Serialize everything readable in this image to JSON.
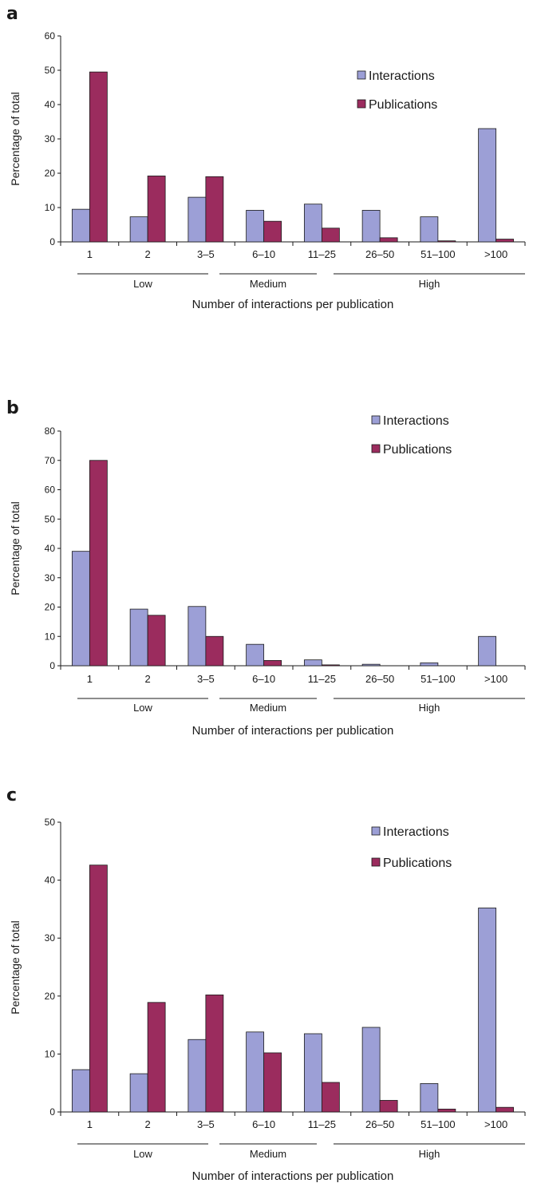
{
  "chart_data": [
    {
      "panel": "a",
      "type": "bar",
      "categories": [
        "1",
        "2",
        "3–5",
        "6–10",
        "11–25",
        "26–50",
        "51–100",
        ">100"
      ],
      "series": [
        {
          "name": "Interactions",
          "values": [
            9.5,
            7.3,
            13,
            9.2,
            11,
            9.2,
            7.3,
            33
          ]
        },
        {
          "name": "Publications",
          "values": [
            49.5,
            19.2,
            19,
            6,
            4,
            1.2,
            0.3,
            0.8
          ]
        }
      ],
      "ylabel": "Percentage of total",
      "xlabel": "Number of interactions per publication",
      "ylim": [
        0,
        60
      ],
      "yticks": [
        "0",
        "10",
        "20",
        "30",
        "40",
        "50",
        "60"
      ],
      "groups": [
        {
          "label": "Low",
          "from": 0,
          "to": 2
        },
        {
          "label": "Medium",
          "from": 3,
          "to": 4
        },
        {
          "label": "High",
          "from": 5,
          "to": 7
        }
      ],
      "colors": {
        "Interactions": "#9c9fd6",
        "Publications": "#9b2c5e"
      },
      "legend": "top-right",
      "grid": false
    },
    {
      "panel": "b",
      "type": "bar",
      "categories": [
        "1",
        "2",
        "3–5",
        "6–10",
        "11–25",
        "26–50",
        "51–100",
        ">100"
      ],
      "series": [
        {
          "name": "Interactions",
          "values": [
            39,
            19.3,
            20.2,
            7.3,
            2,
            0.5,
            1,
            10
          ]
        },
        {
          "name": "Publications",
          "values": [
            70,
            17.2,
            10,
            1.8,
            0.3,
            0,
            0,
            0
          ]
        }
      ],
      "ylabel": "Percentage of total",
      "xlabel": "Number of interactions per publication",
      "ylim": [
        0,
        80
      ],
      "yticks": [
        "0",
        "10",
        "20",
        "30",
        "40",
        "50",
        "60",
        "70",
        "80"
      ],
      "groups": [
        {
          "label": "Low",
          "from": 0,
          "to": 2
        },
        {
          "label": "Medium",
          "from": 3,
          "to": 4
        },
        {
          "label": "High",
          "from": 5,
          "to": 7
        }
      ],
      "colors": {
        "Interactions": "#9c9fd6",
        "Publications": "#9b2c5e"
      },
      "legend": "top-right",
      "grid": false
    },
    {
      "panel": "c",
      "type": "bar",
      "categories": [
        "1",
        "2",
        "3–5",
        "6–10",
        "11–25",
        "26–50",
        "51–100",
        ">100"
      ],
      "series": [
        {
          "name": "Interactions",
          "values": [
            7.3,
            6.6,
            12.5,
            13.8,
            13.5,
            14.6,
            4.9,
            35.2
          ]
        },
        {
          "name": "Publications",
          "values": [
            42.6,
            18.9,
            20.2,
            10.2,
            5.1,
            2,
            0.5,
            0.8
          ]
        }
      ],
      "ylabel": "Percentage of total",
      "xlabel": "Number of interactions per publication",
      "ylim": [
        0,
        50
      ],
      "yticks": [
        "0",
        "10",
        "20",
        "30",
        "40",
        "50"
      ],
      "groups": [
        {
          "label": "Low",
          "from": 0,
          "to": 2
        },
        {
          "label": "Medium",
          "from": 3,
          "to": 4
        },
        {
          "label": "High",
          "from": 5,
          "to": 7
        }
      ],
      "colors": {
        "Interactions": "#9c9fd6",
        "Publications": "#9b2c5e"
      },
      "legend": "top-right",
      "grid": false
    }
  ]
}
